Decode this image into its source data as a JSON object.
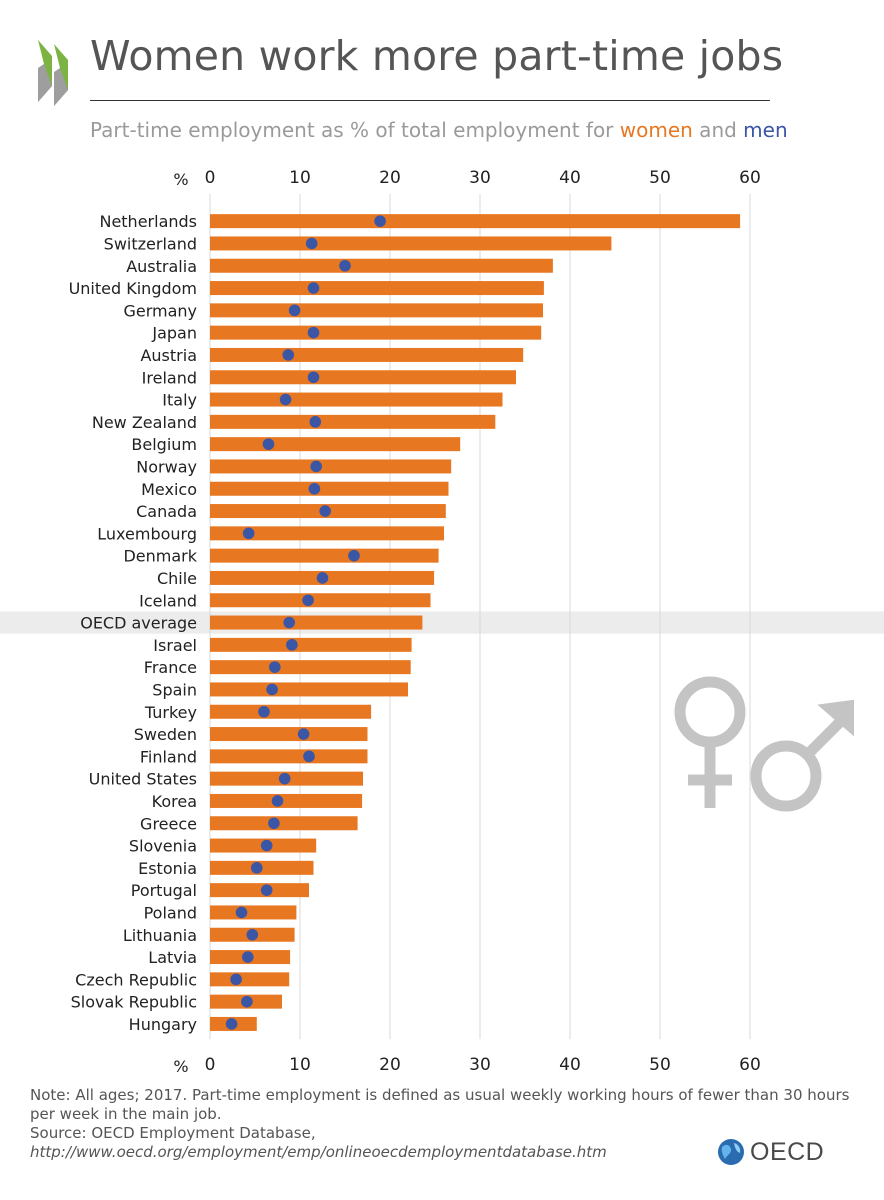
{
  "header": {
    "title": "Women work more part-time jobs",
    "subtitle_prefix": "Part-time employment as % of total employment for ",
    "subtitle_women": "women",
    "subtitle_and": " and ",
    "subtitle_men": "men"
  },
  "colors": {
    "women": "#e87722",
    "men": "#3a56a5",
    "highlight": "#ececec",
    "grid": "#d9d9d9",
    "symbols": "#c4c4c4"
  },
  "chart_data": {
    "type": "bar",
    "orientation": "horizontal",
    "axis_unit_label": "%",
    "xlim": [
      0,
      60
    ],
    "xticks": [
      0,
      10,
      20,
      30,
      40,
      50,
      60
    ],
    "highlight_category": "OECD average",
    "categories": [
      "Netherlands",
      "Switzerland",
      "Australia",
      "United Kingdom",
      "Germany",
      "Japan",
      "Austria",
      "Ireland",
      "Italy",
      "New Zealand",
      "Belgium",
      "Norway",
      "Mexico",
      "Canada",
      "Luxembourg",
      "Denmark",
      "Chile",
      "Iceland",
      "OECD average",
      "Israel",
      "France",
      "Spain",
      "Turkey",
      "Sweden",
      "Finland",
      "United States",
      "Korea",
      "Greece",
      "Slovenia",
      "Estonia",
      "Portugal",
      "Poland",
      "Lithuania",
      "Latvia",
      "Czech Republic",
      "Slovak Republic",
      "Hungary"
    ],
    "series": [
      {
        "name": "women",
        "mark": "bar",
        "values": [
          58.9,
          44.6,
          38.1,
          37.1,
          37.0,
          36.8,
          34.8,
          34.0,
          32.5,
          31.7,
          27.8,
          26.8,
          26.5,
          26.2,
          26.0,
          25.4,
          24.9,
          24.5,
          23.6,
          22.4,
          22.3,
          22.0,
          17.9,
          17.5,
          17.5,
          17.0,
          16.9,
          16.4,
          11.8,
          11.5,
          11.0,
          9.6,
          9.4,
          8.9,
          8.8,
          8.0,
          5.2
        ]
      },
      {
        "name": "men",
        "mark": "dot",
        "values": [
          18.9,
          11.3,
          15.0,
          11.5,
          9.4,
          11.5,
          8.7,
          11.5,
          8.4,
          11.7,
          6.5,
          11.8,
          11.6,
          12.8,
          4.3,
          16.0,
          12.5,
          10.9,
          8.8,
          9.1,
          7.2,
          6.9,
          6.0,
          10.4,
          11.0,
          8.3,
          7.5,
          7.1,
          6.3,
          5.2,
          6.3,
          3.5,
          4.7,
          4.2,
          2.9,
          4.1,
          2.4
        ]
      }
    ]
  },
  "footer": {
    "note": "Note: All ages; 2017. Part-time employment is defined as usual weekly working hours of fewer than 30 hours per week in the main job.",
    "source": "Source: OECD Employment Database,",
    "url": "http://www.oecd.org/employment/emp/onlineoecdemploymentdatabase.htm",
    "logo_text": "OECD"
  }
}
